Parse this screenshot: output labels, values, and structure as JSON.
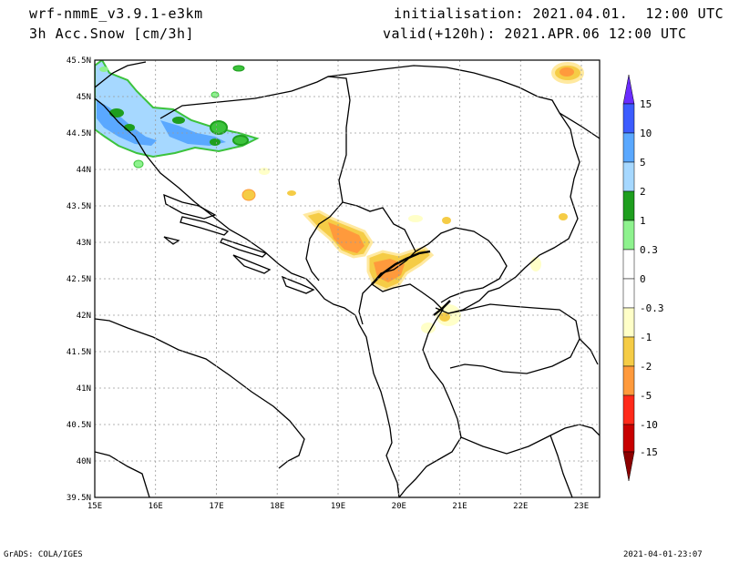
{
  "header": {
    "model": "wrf-nmmE_v3.9.1-e3km",
    "field": "3h Acc.Snow [cm/3h]",
    "init": "initialisation: 2021.04.01.  12:00 UTC",
    "valid": "valid(+120h): 2021.APR.06 12:00 UTC"
  },
  "axes": {
    "lon_ticks": [
      "15E",
      "16E",
      "17E",
      "18E",
      "19E",
      "20E",
      "21E",
      "22E",
      "23E"
    ],
    "lat_ticks": [
      "45.5N",
      "45N",
      "44.5N",
      "44N",
      "43.5N",
      "43N",
      "42.5N",
      "42N",
      "41.5N",
      "41N",
      "40.5N",
      "40N",
      "39.5N"
    ],
    "lon_range": [
      15,
      23.3
    ],
    "lat_range": [
      39.5,
      45.5
    ],
    "grid": true
  },
  "colorbar": {
    "labels": [
      "15",
      "10",
      "5",
      "2",
      "1",
      "0.3",
      "0",
      "-0.3",
      "-1",
      "-2",
      "-5",
      "-10",
      "-15"
    ],
    "colors": [
      "#6a2cff",
      "#3c5cff",
      "#5aa8ff",
      "#a6d8ff",
      "#1e9e1e",
      "#3cc33c",
      "#8ef28e",
      "#ffffff",
      "#ffffc8",
      "#f5cc46",
      "#ff9a3c",
      "#ff2a1a",
      "#c80000",
      "#8c0000"
    ]
  },
  "footer": {
    "left": "GrADS: COLA/IGES",
    "right": "2021-04-01-23:07"
  }
}
